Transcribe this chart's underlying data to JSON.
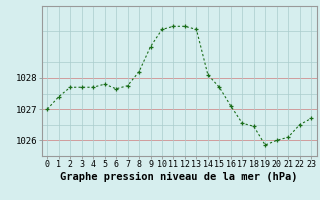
{
  "hours": [
    0,
    1,
    2,
    3,
    4,
    5,
    6,
    7,
    8,
    9,
    10,
    11,
    12,
    13,
    14,
    15,
    16,
    17,
    18,
    19,
    20,
    21,
    22,
    23
  ],
  "pressure": [
    1027.0,
    1027.4,
    1027.7,
    1027.7,
    1027.7,
    1027.8,
    1027.65,
    1027.75,
    1028.2,
    1029.0,
    1029.55,
    1029.65,
    1029.65,
    1029.55,
    1028.1,
    1027.7,
    1027.1,
    1026.55,
    1026.45,
    1025.85,
    1026.0,
    1026.1,
    1026.5,
    1026.7
  ],
  "line_color": "#1a6e1a",
  "marker": "+",
  "bg_color": "#d6eeee",
  "grid_color": "#aacccc",
  "xlabel": "Graphe pression niveau de la mer (hPa)",
  "xlabel_fontsize": 7.5,
  "tick_label_fontsize": 6.5,
  "ylim": [
    1025.5,
    1030.3
  ],
  "yticks": [
    1026,
    1027,
    1028
  ],
  "frame_color": "#999999"
}
